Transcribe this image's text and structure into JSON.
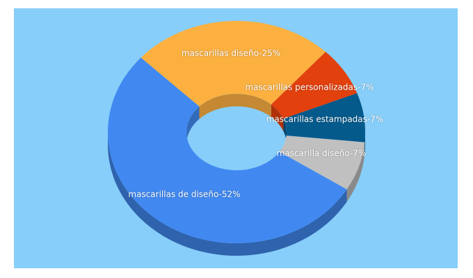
{
  "chart_data": {
    "type": "donut3d",
    "categories": [
      "mascarillas de diseño",
      "mascarillas diseño",
      "mascarillas personalizadas",
      "mascarillas estampadas",
      "mascarilla diseño"
    ],
    "values": [
      52,
      25,
      7,
      7,
      7
    ],
    "value_labels": [
      "mascarillas de diseño-52%",
      "mascarillas diseño-25%",
      "mascarillas personalizadas-7%",
      "mascarillas estampadas-7%",
      "mascarilla diseño-7%"
    ],
    "colors": [
      "#4189f0",
      "#fbb040",
      "#e2400c",
      "#055a8c",
      "#c0c0c0"
    ]
  }
}
